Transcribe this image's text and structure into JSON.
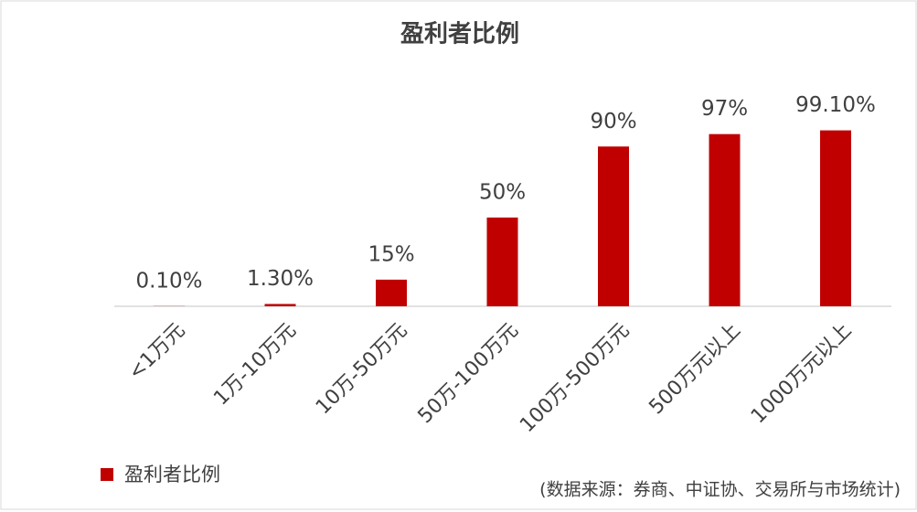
{
  "chart_data": {
    "type": "bar",
    "title": "盈利者比例",
    "categories": [
      "<1万元",
      "1万-10万元",
      "10万-50万元",
      "50万-100万元",
      "100万-500万元",
      "500万元以上",
      "1000万元以上"
    ],
    "series": [
      {
        "name": "盈利者比例",
        "color": "#c00000",
        "values": [
          0.1,
          1.3,
          15,
          50,
          90,
          97,
          99.1
        ],
        "value_labels": [
          "0.10%",
          "1.30%",
          "15%",
          "50%",
          "90%",
          "97%",
          "99.10%"
        ]
      }
    ],
    "ylim": [
      0,
      120
    ],
    "legend": "bottom-left",
    "source": "(数据来源：券商、中证协、交易所与市场统计)"
  }
}
